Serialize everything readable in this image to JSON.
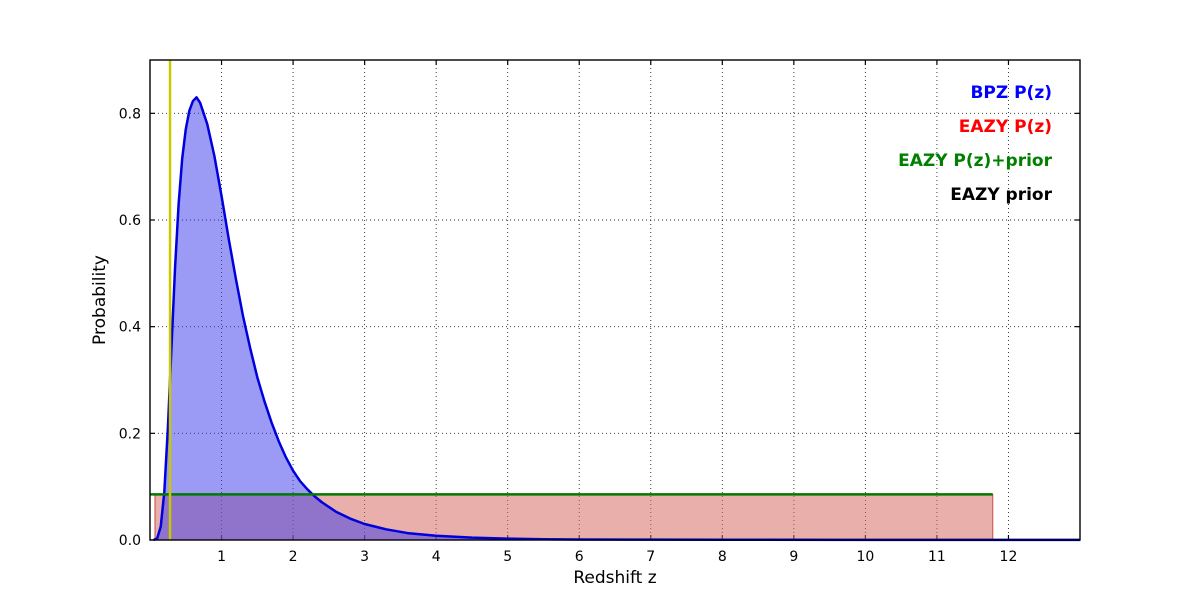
{
  "chart_data": {
    "type": "line",
    "title": "",
    "xlabel": "Redshift z",
    "ylabel": "Probability",
    "xlim": [
      0,
      13
    ],
    "ylim": [
      0,
      0.9
    ],
    "xticks": [
      1,
      2,
      3,
      4,
      5,
      6,
      7,
      8,
      9,
      10,
      11,
      12
    ],
    "xtick_labels": [
      "1",
      "2",
      "3",
      "4",
      "5",
      "6",
      "7",
      "8",
      "9",
      "10",
      "11",
      "12"
    ],
    "yticks": [
      0.0,
      0.2,
      0.4,
      0.6,
      0.8
    ],
    "ytick_labels": [
      "0.0",
      "0.2",
      "0.4",
      "0.6",
      "0.8"
    ],
    "grid": "dotted",
    "legend_position": "upper right",
    "legend": [
      {
        "label": "BPZ P(z)",
        "color": "#0000ff"
      },
      {
        "label": "EAZY P(z)",
        "color": "#ff0000"
      },
      {
        "label": "EAZY P(z)+prior",
        "color": "#008000"
      },
      {
        "label": "EAZY prior",
        "color": "#000000"
      }
    ],
    "series": [
      {
        "name": "EAZY P(z)",
        "type": "area",
        "stroke": "rgba(200,85,75,0.9)",
        "fill": "rgba(215,110,100,0.55)",
        "width": 1.2,
        "points": [
          [
            0.07,
            0
          ],
          [
            0.07,
            0.0855
          ],
          [
            11.78,
            0.0855
          ],
          [
            11.78,
            0
          ]
        ]
      },
      {
        "name": "BPZ P(z)",
        "type": "area",
        "stroke": "#0000dd",
        "fill": "rgba(55,55,235,0.5)",
        "width": 2.5,
        "points": [
          [
            0.05,
            0.0
          ],
          [
            0.1,
            0.003
          ],
          [
            0.15,
            0.025
          ],
          [
            0.2,
            0.09
          ],
          [
            0.25,
            0.21
          ],
          [
            0.3,
            0.36
          ],
          [
            0.35,
            0.51
          ],
          [
            0.4,
            0.63
          ],
          [
            0.45,
            0.715
          ],
          [
            0.5,
            0.77
          ],
          [
            0.55,
            0.805
          ],
          [
            0.6,
            0.823
          ],
          [
            0.65,
            0.83
          ],
          [
            0.7,
            0.82
          ],
          [
            0.75,
            0.8
          ],
          [
            0.8,
            0.78
          ],
          [
            0.9,
            0.72
          ],
          [
            1.0,
            0.645
          ],
          [
            1.1,
            0.565
          ],
          [
            1.2,
            0.49
          ],
          [
            1.3,
            0.42
          ],
          [
            1.4,
            0.36
          ],
          [
            1.5,
            0.305
          ],
          [
            1.6,
            0.26
          ],
          [
            1.7,
            0.22
          ],
          [
            1.8,
            0.185
          ],
          [
            1.9,
            0.155
          ],
          [
            2.0,
            0.13
          ],
          [
            2.1,
            0.11
          ],
          [
            2.2,
            0.095
          ],
          [
            2.3,
            0.082
          ],
          [
            2.4,
            0.071
          ],
          [
            2.6,
            0.053
          ],
          [
            2.8,
            0.04
          ],
          [
            3.0,
            0.03
          ],
          [
            3.3,
            0.02
          ],
          [
            3.6,
            0.013
          ],
          [
            4.0,
            0.008
          ],
          [
            4.5,
            0.0045
          ],
          [
            5.0,
            0.0025
          ],
          [
            5.5,
            0.0015
          ],
          [
            6.0,
            0.001
          ],
          [
            7.0,
            0.0006
          ],
          [
            8.0,
            0.0004
          ],
          [
            10.0,
            0.0003
          ],
          [
            13.0,
            0.0002
          ]
        ]
      },
      {
        "name": "EAZY P(z)+prior",
        "type": "line",
        "stroke": "#007a00",
        "width": 2.5,
        "points": [
          [
            0.0,
            0.0855
          ],
          [
            11.78,
            0.0855
          ]
        ]
      },
      {
        "name": "EAZY prior",
        "type": "line",
        "stroke": "#000000",
        "width": 2,
        "points": []
      }
    ],
    "vlines": [
      {
        "name": "spec-z-marker",
        "x": 0.28,
        "color": "#c9c900",
        "width": 2.5
      }
    ]
  }
}
